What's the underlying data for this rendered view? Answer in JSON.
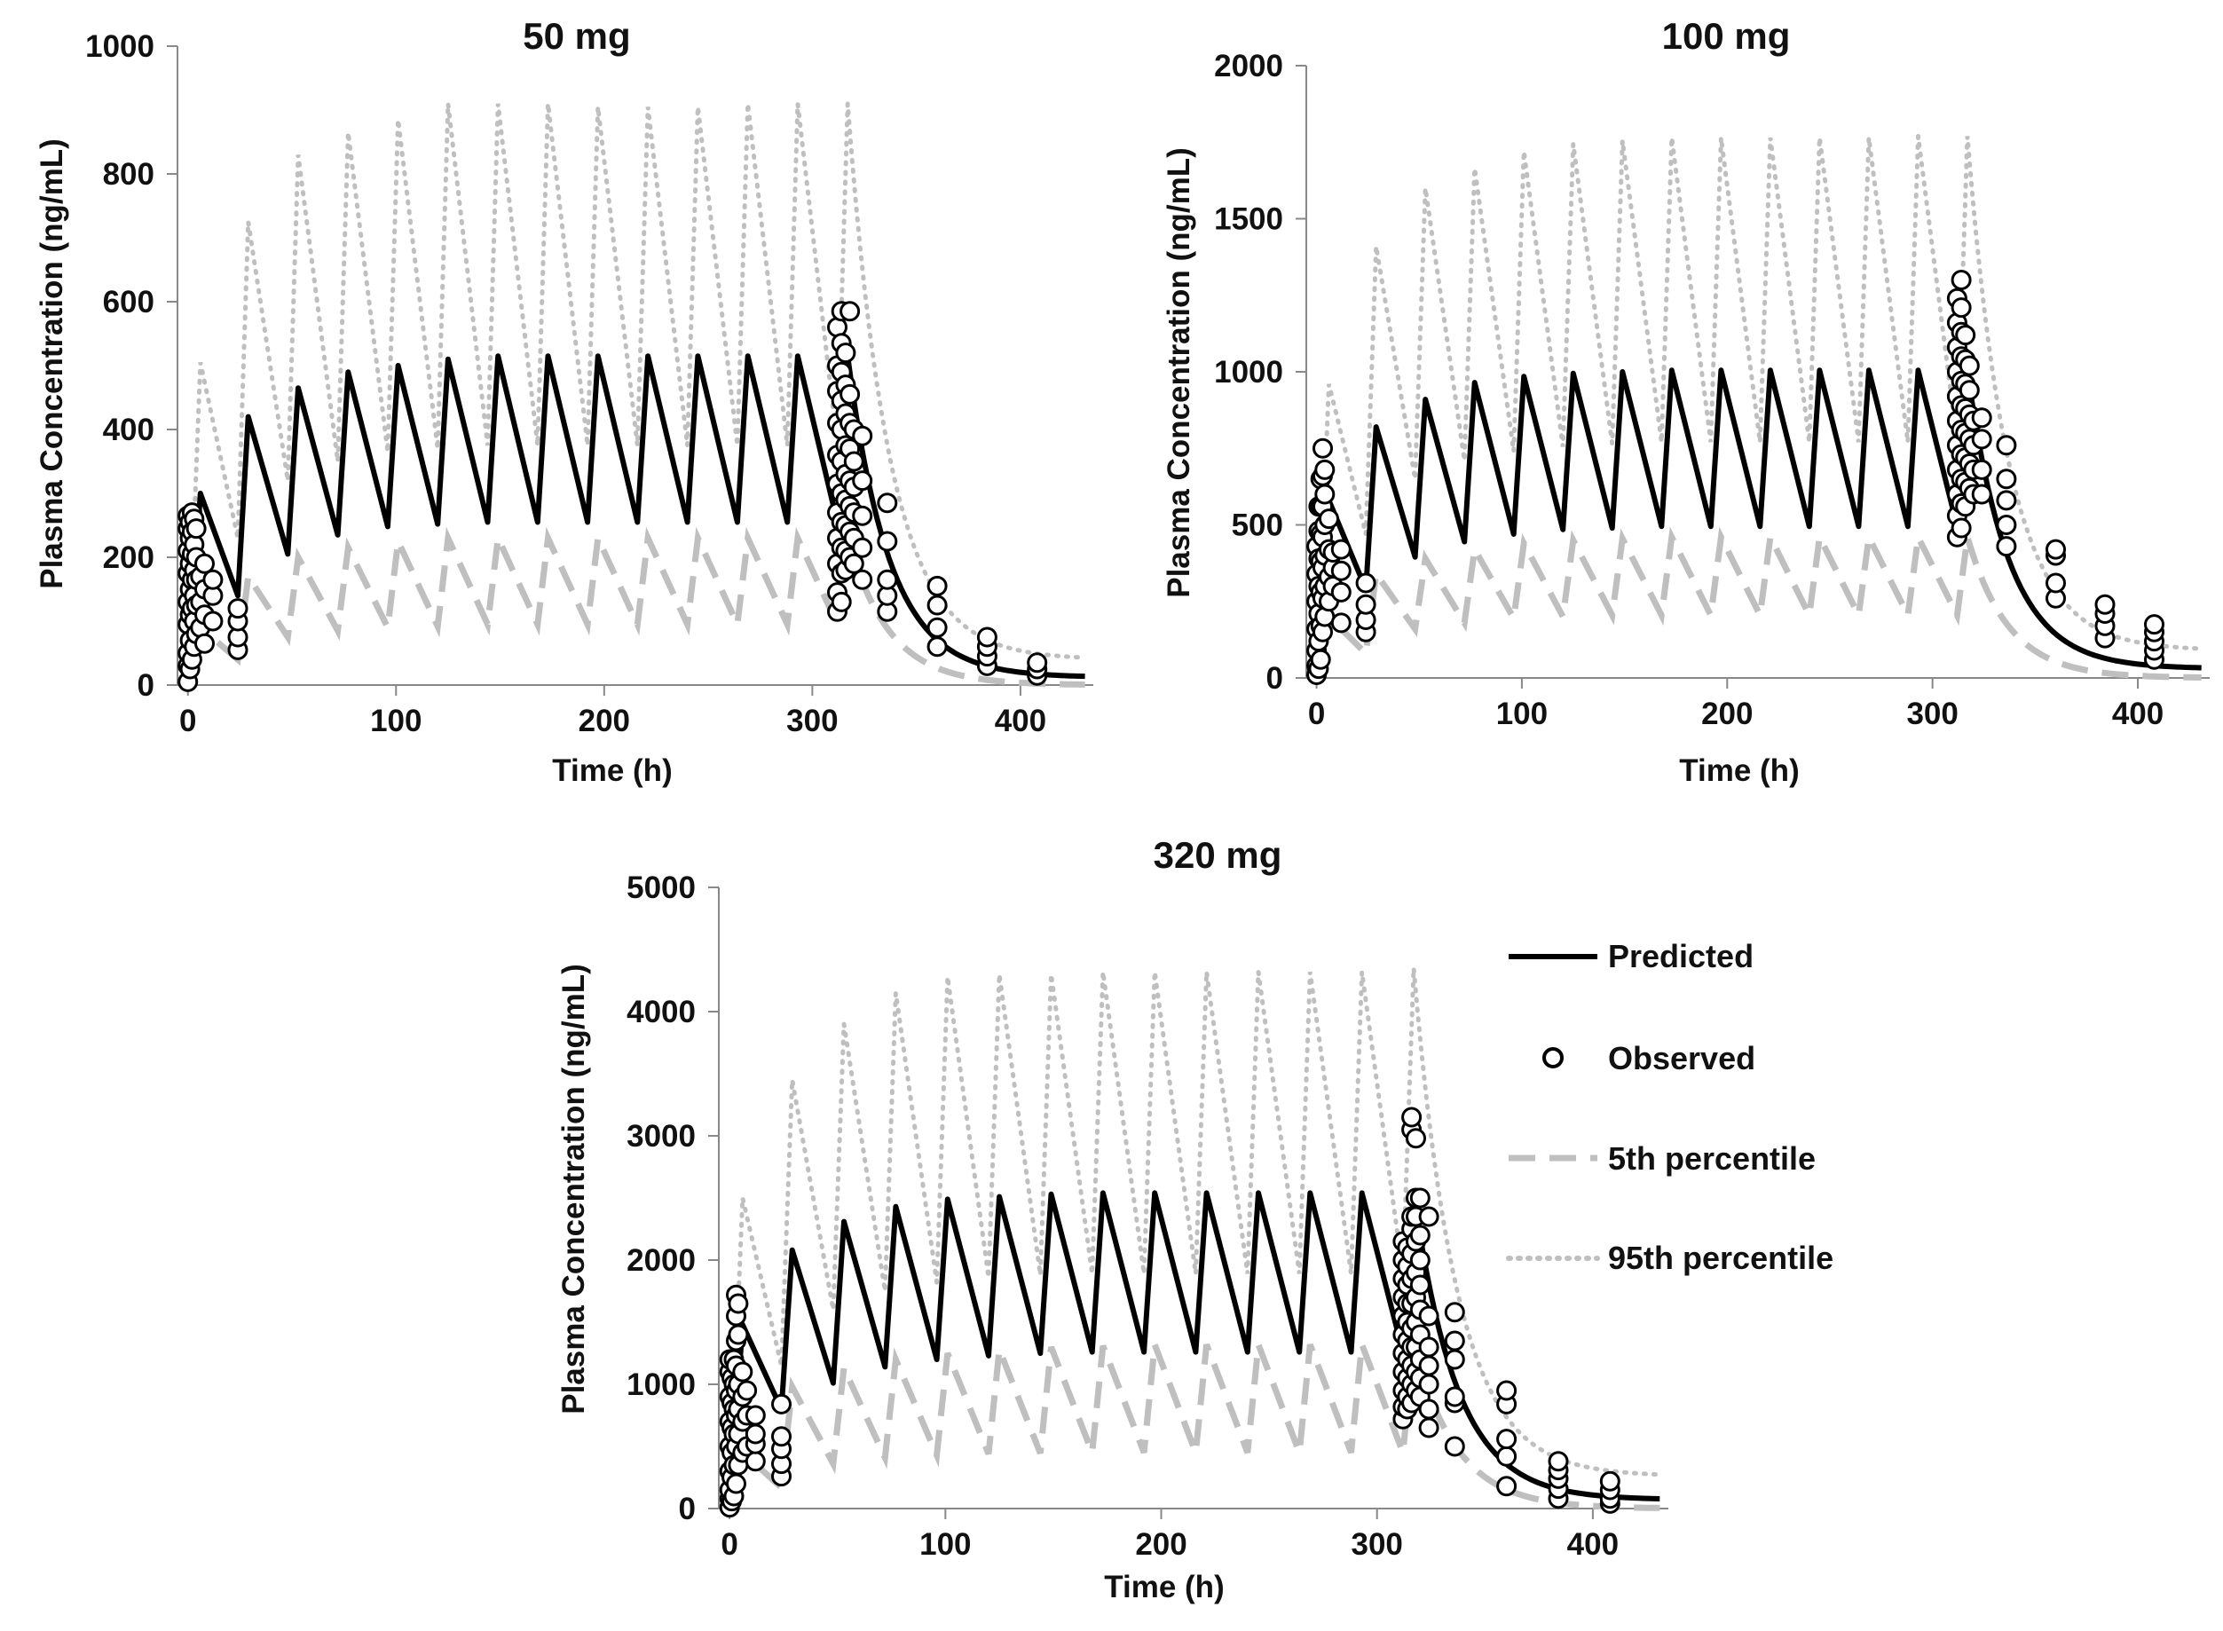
{
  "chart_data": [
    {
      "type": "line",
      "title": "50 mg",
      "xlabel": "Time (h)",
      "ylabel": "Plasma Concentration (ng/mL)",
      "xlim": [
        -5,
        435
      ],
      "ylim": [
        0,
        1000
      ],
      "xticks": [
        0,
        100,
        200,
        300,
        400
      ],
      "yticks": [
        0,
        200,
        400,
        600,
        800,
        1000
      ],
      "x_tick_labels": [
        "0",
        "100",
        "200",
        "300",
        "400"
      ],
      "y_tick_labels": [
        "0",
        "200",
        "400",
        "600",
        "800",
        "1000"
      ],
      "series": [
        {
          "name": "Predicted",
          "peaks": [
            300,
            420,
            465,
            490,
            500,
            510,
            515,
            515,
            515,
            515,
            515,
            515,
            515,
            515
          ],
          "troughs": [
            140,
            205,
            235,
            248,
            252,
            255,
            255,
            255,
            255,
            255,
            255,
            255,
            255
          ],
          "tail_end": 12
        },
        {
          "name": "5th percentile",
          "peaks": [
            90,
            170,
            200,
            215,
            225,
            230,
            230,
            230,
            230,
            230,
            230,
            230,
            230,
            230
          ],
          "troughs": [
            40,
            75,
            85,
            90,
            92,
            95,
            95,
            95,
            95,
            95,
            95,
            95,
            95
          ],
          "tail_end": 0
        },
        {
          "name": "95th percentile",
          "peaks": [
            505,
            725,
            830,
            865,
            885,
            910,
            910,
            910,
            905,
            905,
            905,
            910,
            910,
            910
          ],
          "troughs": [
            230,
            320,
            350,
            365,
            370,
            375,
            375,
            375,
            375,
            375,
            375,
            375,
            375
          ],
          "tail_end": 40
        }
      ],
      "observed": {
        "groups": [
          {
            "t": 0,
            "values": [
              5,
              30,
              50,
              95,
              130,
              175,
              210,
              245,
              265
            ]
          },
          {
            "t": 1,
            "values": [
              25,
              70,
              110,
              150,
              190,
              230,
              255
            ]
          },
          {
            "t": 2,
            "values": [
              40,
              120,
              165,
              205,
              240,
              270
            ]
          },
          {
            "t": 3,
            "values": [
              60,
              100,
              140,
              180,
              220,
              260
            ]
          },
          {
            "t": 4,
            "values": [
              80,
              125,
              165,
              200,
              245
            ]
          },
          {
            "t": 6,
            "values": [
              90,
              130,
              170
            ]
          },
          {
            "t": 8,
            "values": [
              65,
              110,
              150,
              190
            ]
          },
          {
            "t": 12,
            "values": [
              100,
              140,
              165
            ]
          },
          {
            "t": 24,
            "values": [
              55,
              75,
              100,
              120
            ]
          },
          {
            "t": 312,
            "values": [
              115,
              145,
              190,
              230,
              270,
              315,
              360,
              410,
              460,
              500,
              560
            ]
          },
          {
            "t": 314,
            "values": [
              130,
              175,
              215,
              255,
              300,
              350,
              400,
              445,
              490,
              535,
              585
            ]
          },
          {
            "t": 316,
            "values": [
              180,
              210,
              250,
              290,
              330,
              375,
              425,
              470,
              520
            ]
          },
          {
            "t": 318,
            "values": [
              200,
              240,
              280,
              320,
              370,
              410,
              455,
              585
            ]
          },
          {
            "t": 320,
            "values": [
              190,
              230,
              270,
              310,
              350,
              400
            ]
          },
          {
            "t": 324,
            "values": [
              165,
              215,
              265,
              320,
              390
            ]
          },
          {
            "t": 336,
            "values": [
              115,
              140,
              165,
              225,
              285
            ]
          },
          {
            "t": 360,
            "values": [
              60,
              90,
              125,
              155
            ]
          },
          {
            "t": 384,
            "values": [
              30,
              45,
              60,
              75
            ]
          },
          {
            "t": 408,
            "values": [
              15,
              25,
              35
            ]
          }
        ]
      }
    },
    {
      "type": "line",
      "title": "100 mg",
      "xlabel": "Time (h)",
      "ylabel": "Plasma Concentration (ng/mL)",
      "xlim": [
        -5,
        435
      ],
      "ylim": [
        0,
        2000
      ],
      "xticks": [
        0,
        100,
        200,
        300,
        400
      ],
      "yticks": [
        0,
        500,
        1000,
        1500,
        2000
      ],
      "x_tick_labels": [
        "0",
        "100",
        "200",
        "300",
        "400"
      ],
      "y_tick_labels": [
        "0",
        "500",
        "1000",
        "1500",
        "2000"
      ],
      "series": [
        {
          "name": "Predicted",
          "peaks": [
            580,
            820,
            910,
            965,
            985,
            995,
            1000,
            1005,
            1005,
            1005,
            1005,
            1005,
            1005,
            1005
          ],
          "troughs": [
            290,
            395,
            445,
            470,
            485,
            490,
            495,
            495,
            495,
            495,
            495,
            495,
            495
          ],
          "tail_end": 30
        },
        {
          "name": "5th percentile",
          "peaks": [
            200,
            340,
            390,
            420,
            440,
            450,
            455,
            460,
            460,
            460,
            460,
            460,
            460,
            460
          ],
          "troughs": [
            80,
            160,
            180,
            195,
            200,
            205,
            205,
            205,
            205,
            205,
            205,
            205,
            205
          ],
          "tail_end": 0
        },
        {
          "name": "95th percentile",
          "peaks": [
            960,
            1410,
            1600,
            1665,
            1720,
            1745,
            1755,
            1765,
            1765,
            1765,
            1765,
            1765,
            1770,
            1770
          ],
          "troughs": [
            470,
            650,
            710,
            740,
            755,
            765,
            770,
            770,
            770,
            770,
            770,
            770,
            770
          ],
          "tail_end": 90
        }
      ],
      "observed": {
        "groups": [
          {
            "t": 0,
            "values": [
              10,
              40,
              90,
              160,
              250,
              340,
              430
            ]
          },
          {
            "t": 1,
            "values": [
              30,
              120,
              210,
              300,
              390,
              480,
              560
            ]
          },
          {
            "t": 2,
            "values": [
              60,
              170,
              280,
              380,
              470,
              560,
              650
            ]
          },
          {
            "t": 3,
            "values": [
              150,
              260,
              360,
              460,
              560,
              660,
              750
            ]
          },
          {
            "t": 4,
            "values": [
              200,
              300,
              400,
              500,
              600,
              680
            ]
          },
          {
            "t": 6,
            "values": [
              250,
              330,
              420,
              520
            ]
          },
          {
            "t": 8,
            "values": [
              300,
              360,
              410
            ]
          },
          {
            "t": 12,
            "values": [
              180,
              280,
              350,
              420
            ]
          },
          {
            "t": 24,
            "values": [
              150,
              190,
              240,
              310
            ]
          },
          {
            "t": 312,
            "values": [
              460,
              530,
              600,
              680,
              760,
              840,
              920,
              1000,
              1080,
              1160,
              1240
            ]
          },
          {
            "t": 314,
            "values": [
              490,
              570,
              650,
              730,
              810,
              890,
              970,
              1050,
              1130,
              1210,
              1300
            ]
          },
          {
            "t": 316,
            "values": [
              560,
              640,
              720,
              800,
              880,
              960,
              1040,
              1120
            ]
          },
          {
            "t": 318,
            "values": [
              620,
              700,
              780,
              860,
              940,
              1020
            ]
          },
          {
            "t": 320,
            "values": [
              600,
              680,
              760,
              840
            ]
          },
          {
            "t": 324,
            "values": [
              600,
              680,
              780,
              850
            ]
          },
          {
            "t": 336,
            "values": [
              430,
              500,
              580,
              650,
              760
            ]
          },
          {
            "t": 360,
            "values": [
              260,
              310,
              400,
              420
            ]
          },
          {
            "t": 384,
            "values": [
              130,
              170,
              210,
              240
            ]
          },
          {
            "t": 408,
            "values": [
              60,
              90,
              120,
              150,
              175
            ]
          }
        ]
      }
    },
    {
      "type": "line",
      "title": "320 mg",
      "xlabel": "Time (h)",
      "ylabel": "Plasma Concentration (ng/mL)",
      "xlim": [
        -5,
        435
      ],
      "ylim": [
        0,
        5000
      ],
      "xticks": [
        0,
        100,
        200,
        300,
        400
      ],
      "yticks": [
        0,
        1000,
        2000,
        3000,
        4000,
        5000
      ],
      "x_tick_labels": [
        "0",
        "100",
        "200",
        "300",
        "400"
      ],
      "y_tick_labels": [
        "0",
        "1000",
        "2000",
        "3000",
        "4000",
        "5000"
      ],
      "series": [
        {
          "name": "Predicted",
          "peaks": [
            1480,
            2080,
            2310,
            2430,
            2490,
            2510,
            2530,
            2540,
            2540,
            2540,
            2540,
            2540,
            2540,
            2540
          ],
          "troughs": [
            800,
            1010,
            1140,
            1200,
            1230,
            1250,
            1260,
            1260,
            1260,
            1260,
            1260,
            1260,
            1260
          ],
          "tail_end": 70
        },
        {
          "name": "5th percentile",
          "peaks": [
            450,
            980,
            1130,
            1200,
            1250,
            1280,
            1300,
            1310,
            1320,
            1320,
            1320,
            1320,
            1320,
            1320
          ],
          "troughs": [
            170,
            360,
            410,
            430,
            440,
            445,
            450,
            450,
            450,
            450,
            450,
            450,
            450
          ],
          "tail_end": 0
        },
        {
          "name": "95th percentile",
          "peaks": [
            2500,
            3450,
            3900,
            4150,
            4280,
            4300,
            4300,
            4320,
            4320,
            4320,
            4320,
            4320,
            4320,
            4350
          ],
          "troughs": [
            1150,
            1600,
            1750,
            1820,
            1860,
            1880,
            1890,
            1890,
            1890,
            1890,
            1890,
            1890,
            1890
          ],
          "tail_end": 260
        }
      ],
      "observed": {
        "groups": [
          {
            "t": 0,
            "values": [
              10,
              80,
              150,
              300,
              500,
              700,
              900,
              1100,
              1200
            ]
          },
          {
            "t": 1,
            "values": [
              60,
              250,
              450,
              650,
              850,
              1050
            ]
          },
          {
            "t": 2,
            "values": [
              100,
              350,
              600,
              800,
              1000,
              1200
            ]
          },
          {
            "t": 3,
            "values": [
              200,
              500,
              750,
              950,
              1150,
              1350,
              1550,
              1720
            ]
          },
          {
            "t": 4,
            "values": [
              350,
              600,
              800,
              1000,
              1400,
              1650
            ]
          },
          {
            "t": 6,
            "values": [
              450,
              700,
              900,
              1100
            ]
          },
          {
            "t": 8,
            "values": [
              500,
              750,
              950
            ]
          },
          {
            "t": 12,
            "values": [
              380,
              520,
              600,
              750
            ]
          },
          {
            "t": 24,
            "values": [
              260,
              360,
              480,
              580,
              840
            ]
          },
          {
            "t": 312,
            "values": [
              720,
              820,
              950,
              1100,
              1250,
              1400,
              1550,
              1700,
              1850,
              2000,
              2150
            ]
          },
          {
            "t": 314,
            "values": [
              800,
              900,
              1050,
              1200,
              1350,
              1500,
              1650,
              1800,
              1950,
              2100
            ]
          },
          {
            "t": 316,
            "values": [
              850,
              1000,
              1150,
              1300,
              1450,
              1650,
              1850,
              2050,
              2250,
              2350,
              3050,
              3150
            ]
          },
          {
            "t": 318,
            "values": [
              950,
              1100,
              1300,
              1500,
              1700,
              1900,
              2150,
              2350,
              2500,
              2980
            ]
          },
          {
            "t": 320,
            "values": [
              900,
              1050,
              1200,
              1400,
              1600,
              1800,
              2000,
              2200,
              2500
            ]
          },
          {
            "t": 324,
            "values": [
              650,
              800,
              1000,
              1150,
              1300,
              1550,
              2350
            ]
          },
          {
            "t": 336,
            "values": [
              500,
              850,
              900,
              1200,
              1350,
              1580
            ]
          },
          {
            "t": 360,
            "values": [
              180,
              420,
              560,
              840,
              950
            ]
          },
          {
            "t": 384,
            "values": [
              80,
              160,
              240,
              310,
              380
            ]
          },
          {
            "t": 408,
            "values": [
              40,
              80,
              150,
              220
            ]
          }
        ]
      }
    }
  ],
  "legend": {
    "position": "right of 320 mg panel",
    "items": [
      {
        "label": "Predicted",
        "style": "solid",
        "color": "#000000"
      },
      {
        "label": "Observed",
        "style": "marker",
        "color": "#000000"
      },
      {
        "label": "5th percentile",
        "style": "dashed",
        "color": "#b8b8b8"
      },
      {
        "label": "95th percentile",
        "style": "dotted",
        "color": "#b8b8b8"
      }
    ]
  },
  "colors": {
    "predicted": "#000000",
    "percentile": "#bfbfbf",
    "axis": "#888888",
    "text": "#111111"
  }
}
